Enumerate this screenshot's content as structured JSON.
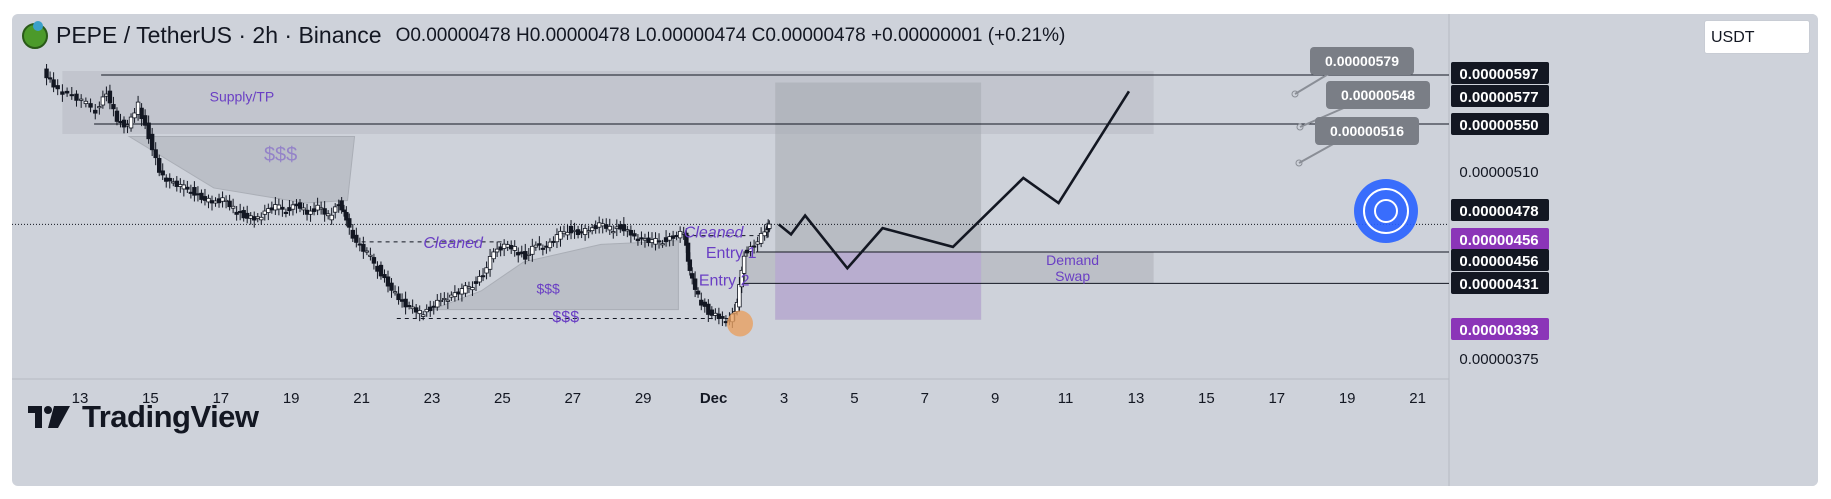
{
  "header": {
    "symbol": "PEPE / TetherUS · 2h · Binance",
    "ohlc": "O0.00000478 H0.00000478 L0.00000474 C0.00000478 +0.00000001 (+0.21%)"
  },
  "currency_button": "USDT",
  "logo_text": "TradingView",
  "chart_data": {
    "type": "candlestick",
    "x_axis_ticks": [
      "13",
      "15",
      "17",
      "19",
      "21",
      "23",
      "25",
      "27",
      "29",
      "Dec",
      "3",
      "5",
      "7",
      "9",
      "11",
      "13",
      "15",
      "17",
      "19",
      "21"
    ],
    "price_scale_labels": [
      {
        "text": "0.00000597",
        "style": "black"
      },
      {
        "text": "0.00000577",
        "style": "black"
      },
      {
        "text": "0.00000550",
        "style": "black"
      },
      {
        "text": "0.00000510",
        "style": "plain"
      },
      {
        "text": "0.00000478",
        "style": "black"
      },
      {
        "text": "0.00000456",
        "style": "purple"
      },
      {
        "text": "0.00000456",
        "style": "black"
      },
      {
        "text": "0.00000431",
        "style": "black"
      },
      {
        "text": "0.00000393",
        "style": "purple"
      },
      {
        "text": "0.00000375",
        "style": "plain"
      }
    ],
    "target_labels": [
      "0.00000579",
      "0.00000548",
      "0.00000516"
    ],
    "close_series": [
      {
        "day": 12.0,
        "price": 600
      },
      {
        "day": 12.3,
        "price": 588
      },
      {
        "day": 12.7,
        "price": 582
      },
      {
        "day": 13.1,
        "price": 576
      },
      {
        "day": 13.5,
        "price": 569
      },
      {
        "day": 13.8,
        "price": 583
      },
      {
        "day": 14.1,
        "price": 560
      },
      {
        "day": 14.4,
        "price": 556
      },
      {
        "day": 14.7,
        "price": 573
      },
      {
        "day": 15.0,
        "price": 548
      },
      {
        "day": 15.3,
        "price": 520
      },
      {
        "day": 15.6,
        "price": 512
      },
      {
        "day": 15.9,
        "price": 508
      },
      {
        "day": 16.2,
        "price": 505
      },
      {
        "day": 16.5,
        "price": 499
      },
      {
        "day": 16.8,
        "price": 495
      },
      {
        "day": 17.1,
        "price": 498
      },
      {
        "day": 17.4,
        "price": 490
      },
      {
        "day": 17.7,
        "price": 485
      },
      {
        "day": 18.0,
        "price": 482
      },
      {
        "day": 18.3,
        "price": 488
      },
      {
        "day": 18.6,
        "price": 492
      },
      {
        "day": 18.9,
        "price": 489
      },
      {
        "day": 19.2,
        "price": 494
      },
      {
        "day": 19.5,
        "price": 486
      },
      {
        "day": 19.8,
        "price": 492
      },
      {
        "day": 20.1,
        "price": 484
      },
      {
        "day": 20.4,
        "price": 495
      },
      {
        "day": 20.6,
        "price": 482
      },
      {
        "day": 20.9,
        "price": 463
      },
      {
        "day": 21.2,
        "price": 455
      },
      {
        "day": 21.5,
        "price": 443
      },
      {
        "day": 21.8,
        "price": 430
      },
      {
        "day": 22.1,
        "price": 418
      },
      {
        "day": 22.4,
        "price": 412
      },
      {
        "day": 22.7,
        "price": 407
      },
      {
        "day": 23.0,
        "price": 411
      },
      {
        "day": 23.3,
        "price": 418
      },
      {
        "day": 23.6,
        "price": 421
      },
      {
        "day": 23.9,
        "price": 425
      },
      {
        "day": 24.2,
        "price": 430
      },
      {
        "day": 24.5,
        "price": 438
      },
      {
        "day": 24.8,
        "price": 456
      },
      {
        "day": 25.1,
        "price": 461
      },
      {
        "day": 25.4,
        "price": 458
      },
      {
        "day": 25.7,
        "price": 452
      },
      {
        "day": 26.0,
        "price": 462
      },
      {
        "day": 26.3,
        "price": 460
      },
      {
        "day": 26.6,
        "price": 468
      },
      {
        "day": 26.9,
        "price": 474
      },
      {
        "day": 27.2,
        "price": 471
      },
      {
        "day": 27.5,
        "price": 473
      },
      {
        "day": 27.8,
        "price": 478
      },
      {
        "day": 28.1,
        "price": 474
      },
      {
        "day": 28.4,
        "price": 476
      },
      {
        "day": 28.7,
        "price": 470
      },
      {
        "day": 29.0,
        "price": 466
      },
      {
        "day": 29.3,
        "price": 464
      },
      {
        "day": 29.6,
        "price": 465
      },
      {
        "day": 29.9,
        "price": 468
      },
      {
        "day": 30.2,
        "price": 471
      },
      {
        "day": 30.35,
        "price": 440
      },
      {
        "day": 30.6,
        "price": 420
      },
      {
        "day": 30.9,
        "price": 408
      },
      {
        "day": 31.2,
        "price": 404
      },
      {
        "day": 31.5,
        "price": 401
      },
      {
        "day": 31.7,
        "price": 414
      },
      {
        "day": 31.9,
        "price": 455
      },
      {
        "day": 32.2,
        "price": 461
      },
      {
        "day": 32.5,
        "price": 472
      },
      {
        "day": 32.6,
        "price": 477
      }
    ],
    "projection_path": [
      {
        "day": 32.85,
        "price": 478
      },
      {
        "day": 33.2,
        "price": 470
      },
      {
        "day": 33.6,
        "price": 485
      },
      {
        "day": 34.8,
        "price": 443
      },
      {
        "day": 35.8,
        "price": 475
      },
      {
        "day": 37.8,
        "price": 460
      },
      {
        "day": 39.8,
        "price": 515
      },
      {
        "day": 40.8,
        "price": 495
      },
      {
        "day": 42.8,
        "price": 584
      }
    ],
    "annotations": [
      "Supply/TP",
      "$$$",
      "Cleaned",
      "Cleaned",
      "Entry 1",
      "Entry 2",
      "$$$",
      "$$$",
      "Demand",
      "Swap"
    ],
    "zones": [
      {
        "name": "Supply/TP",
        "from_day": 12.5,
        "to_day": 43.5,
        "price_low": 550,
        "price_high": 597
      },
      {
        "name": "Demand Swap",
        "from_day": 31.8,
        "to_day": 43.5,
        "price_low": 431,
        "price_high": 456
      }
    ],
    "colors": {
      "annotation": "#6a3fc4",
      "demand": "#b9a5d8",
      "supply": "#bfc3cb",
      "price_purple": "#8b35b8",
      "circle": "#2962ff",
      "liquidity_dot": "#e8a060"
    }
  }
}
